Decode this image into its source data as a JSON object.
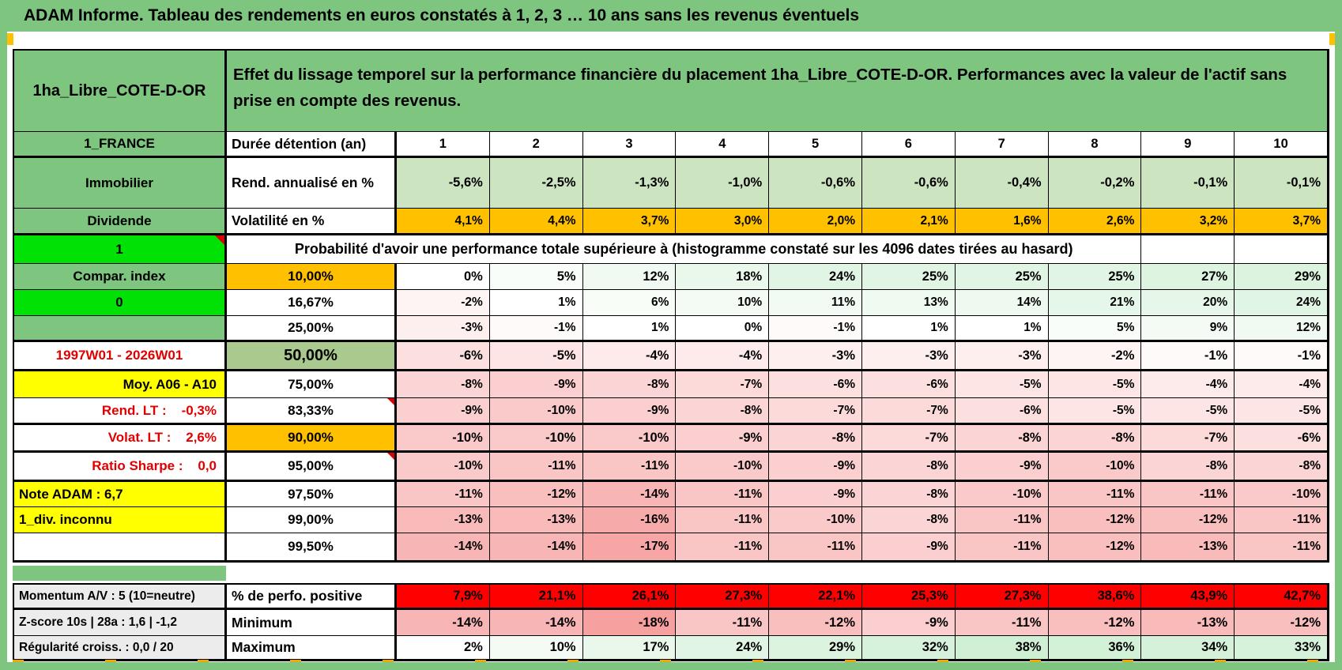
{
  "title": "ADAM Informe. Tableau des rendements en euros constatés à 1, 2, 3 … 10 ans sans les revenus éventuels",
  "colors": {
    "frame_green": "#7ec580",
    "bright_green": "#00e106",
    "orange": "#ffc000",
    "yellow": "#ffff00",
    "sage_green": "#a9c98e",
    "light_green_row": "#cde4c1",
    "red_row": "#fe0000",
    "gray_label": "#ececec",
    "red_text": "#e10000"
  },
  "sheet": {
    "asset_name": "1ha_Libre_COTE-D-OR",
    "description": "Effet du lissage temporel sur la performance financière du placement 1ha_Libre_COTE-D-OR. Performances avec la valeur de l'actif sans prise en compte des revenus.",
    "country_label": "1_FRANCE",
    "duration_label": "Durée détention (an)",
    "duration_years": [
      "1",
      "2",
      "3",
      "4",
      "5",
      "6",
      "7",
      "8",
      "9",
      "10"
    ],
    "asset_class_label": "Immobilier",
    "return_row_label": "Rend. annualisé en %",
    "returns": [
      "-5,6%",
      "-2,5%",
      "-1,3%",
      "-1,0%",
      "-0,6%",
      "-0,6%",
      "-0,4%",
      "-0,2%",
      "-0,1%",
      "-0,1%"
    ],
    "dividend_label": "Dividende",
    "volatility_row_label": "Volatilité en %",
    "volatility": [
      "4,1%",
      "4,4%",
      "3,7%",
      "3,0%",
      "2,0%",
      "2,1%",
      "1,6%",
      "2,6%",
      "3,2%",
      "3,7%"
    ],
    "flag_one": "1",
    "probability_title": "Probabilité d'avoir une performance totale supérieure à (histogramme constaté sur les 4096 dates tirées au hasard)",
    "percentile_rows": [
      {
        "a": "Compar. index",
        "a_class": "green",
        "pct": "10,00%",
        "pct_class": "orange",
        "bold": true,
        "thick": false,
        "values": [
          0,
          5,
          12,
          18,
          24,
          25,
          25,
          25,
          27,
          29
        ]
      },
      {
        "a": "0",
        "a_class": "bright",
        "a_flag": true,
        "pct": "16,67%",
        "pct_class": "",
        "bold": false,
        "thick": false,
        "values": [
          -2,
          1,
          6,
          10,
          11,
          13,
          14,
          21,
          20,
          24
        ]
      },
      {
        "a": "",
        "a_class": "green",
        "pct": "25,00%",
        "pct_class": "",
        "bold": false,
        "thick": true,
        "values": [
          -3,
          -1,
          1,
          0,
          -1,
          1,
          1,
          5,
          9,
          12
        ]
      },
      {
        "a": "1997W01 - 2026W01",
        "a_class": "redc",
        "pct": "50,00%",
        "pct_class": "sage big",
        "bold": true,
        "thick": true,
        "values": [
          -6,
          -5,
          -4,
          -4,
          -3,
          -3,
          -3,
          -2,
          -1,
          -1
        ]
      },
      {
        "a": "Moy. A06 - A10",
        "a_class": "yellr",
        "pct": "75,00%",
        "pct_class": "",
        "bold": false,
        "thick": false,
        "values": [
          -8,
          -9,
          -8,
          -7,
          -6,
          -6,
          -5,
          -5,
          -4,
          -4
        ]
      },
      {
        "a": "Rend. LT :    -0,3%",
        "a_class": "redr",
        "pct": "83,33%",
        "pct_class": "",
        "pct_flag": true,
        "bold": false,
        "thick": true,
        "values": [
          -9,
          -10,
          -9,
          -8,
          -7,
          -7,
          -6,
          -5,
          -5,
          -5
        ]
      },
      {
        "a": "Volat. LT :    2,6%",
        "a_class": "redr",
        "pct": "90,00%",
        "pct_class": "orange",
        "bold": true,
        "thick": true,
        "values": [
          -10,
          -10,
          -10,
          -9,
          -8,
          -7,
          -8,
          -8,
          -7,
          -6
        ]
      },
      {
        "a": "Ratio Sharpe :    0,0",
        "a_class": "redr",
        "pct": "95,00%",
        "pct_class": "",
        "pct_flag": true,
        "bold": false,
        "thick": true,
        "values": [
          -10,
          -11,
          -11,
          -10,
          -9,
          -8,
          -9,
          -10,
          -8,
          -8
        ]
      },
      {
        "a": "Note ADAM : 6,7",
        "a_class": "yelll",
        "pct": "97,50%",
        "pct_class": "",
        "bold": false,
        "thick": false,
        "values": [
          -11,
          -12,
          -14,
          -11,
          -9,
          -8,
          -10,
          -11,
          -11,
          -10
        ]
      },
      {
        "a": "1_div. inconnu",
        "a_class": "yelll",
        "pct": "99,00%",
        "pct_class": "",
        "bold": false,
        "thick": false,
        "values": [
          -13,
          -13,
          -16,
          -11,
          -10,
          -8,
          -11,
          -12,
          -12,
          -11
        ]
      },
      {
        "a": "",
        "a_class": "plain",
        "pct": "99,50%",
        "pct_class": "",
        "bold": false,
        "thick": false,
        "values": [
          -14,
          -14,
          -17,
          -11,
          -11,
          -9,
          -11,
          -12,
          -13,
          -11
        ]
      }
    ],
    "stats_rows": [
      {
        "a": "Momentum A/V : 5 (10=neutre)",
        "b": "% de perfo. positive",
        "style": "red",
        "thick": true,
        "values": [
          "7,9%",
          "21,1%",
          "26,1%",
          "27,3%",
          "22,1%",
          "25,3%",
          "27,3%",
          "38,6%",
          "43,9%",
          "42,7%"
        ]
      },
      {
        "a": "Z-score 10s | 28a : 1,6 | -1,2",
        "b": "Minimum",
        "style": "scale",
        "thick": false,
        "values": [
          -14,
          -14,
          -18,
          -11,
          -12,
          -9,
          -11,
          -12,
          -13,
          -12
        ]
      },
      {
        "a": "Régularité croiss. : 0,0 / 20",
        "b": "Maximum",
        "style": "scale",
        "thick": false,
        "values": [
          2,
          10,
          17,
          24,
          29,
          32,
          38,
          36,
          34,
          33
        ]
      }
    ]
  }
}
